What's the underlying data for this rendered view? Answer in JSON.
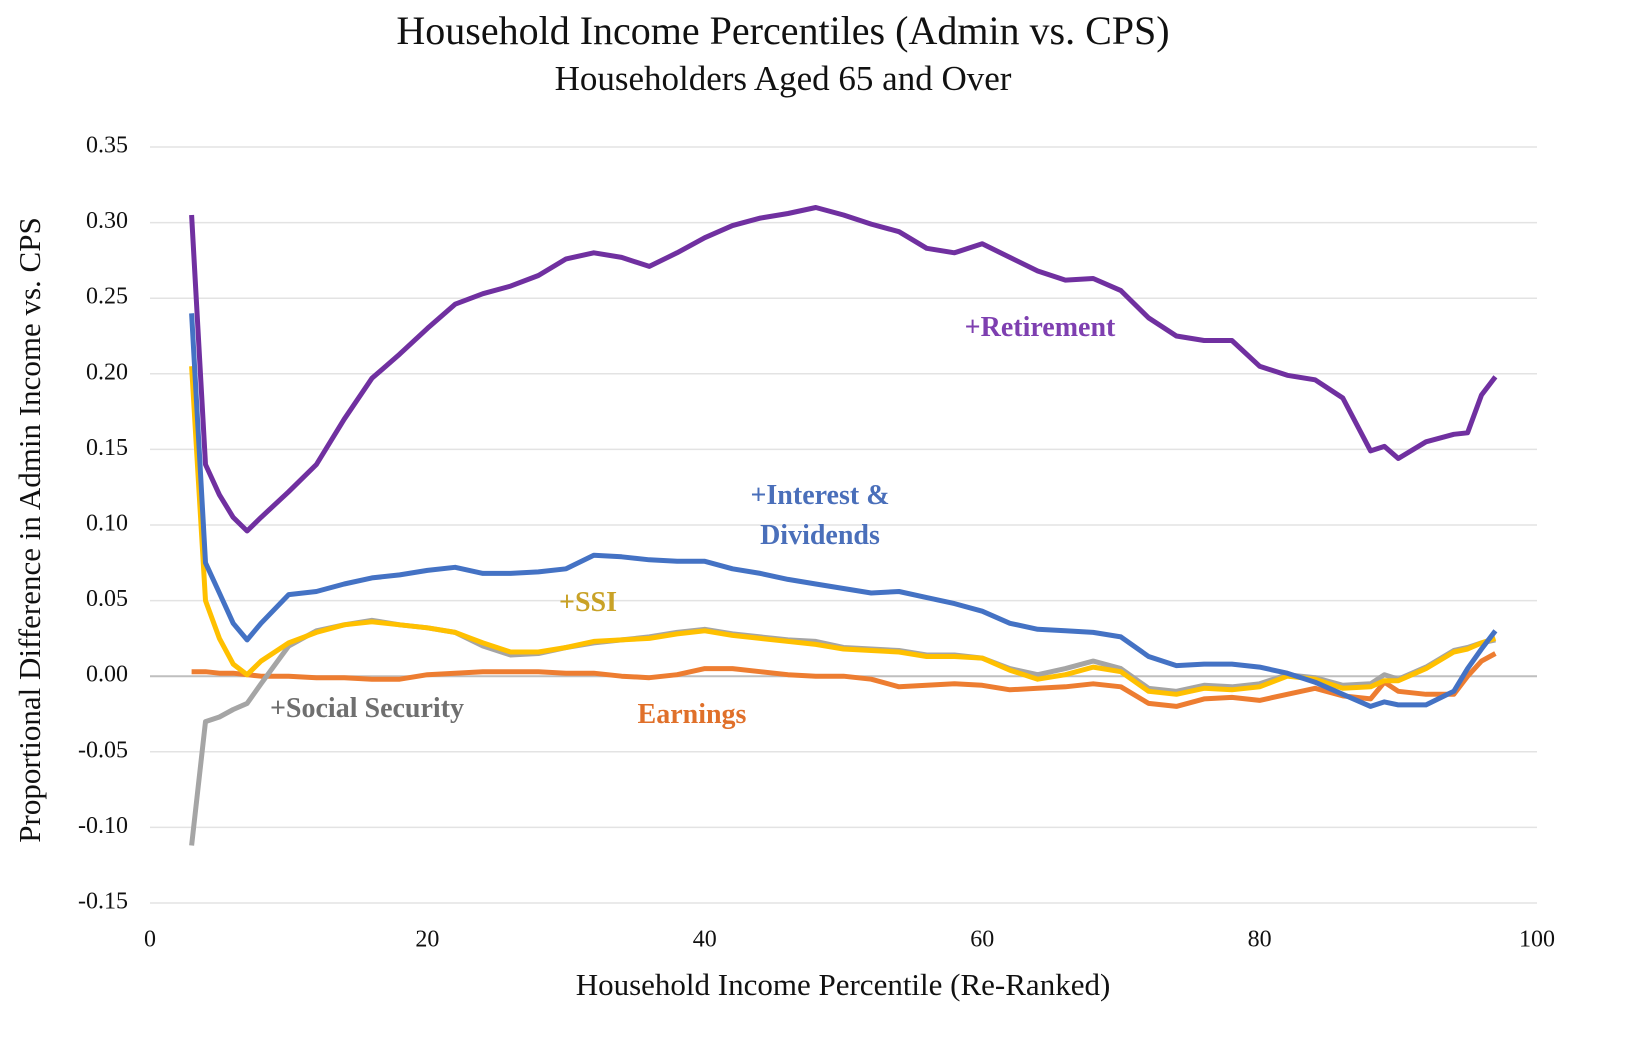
{
  "chart_data": {
    "type": "line",
    "title": "Household Income Percentiles (Admin vs. CPS)",
    "subtitle": "Householders Aged 65 and Over",
    "x_label": "Household Income Percentile (Re-Ranked)",
    "y_label": "Proportional Difference in Admin Income vs. CPS",
    "x": [
      3,
      4,
      5,
      6,
      7,
      8,
      10,
      12,
      14,
      16,
      18,
      20,
      22,
      24,
      26,
      28,
      30,
      32,
      34,
      36,
      38,
      40,
      42,
      44,
      46,
      48,
      50,
      52,
      54,
      56,
      58,
      60,
      62,
      64,
      66,
      68,
      70,
      72,
      74,
      76,
      78,
      80,
      82,
      84,
      86,
      88,
      89,
      90,
      92,
      94,
      95,
      96,
      97
    ],
    "xlim": [
      0,
      100
    ],
    "xticks": [
      0,
      20,
      40,
      60,
      80,
      100
    ],
    "ylim": [
      -0.15,
      0.35
    ],
    "yticks": [
      {
        "value": -0.15,
        "label": "-0.15"
      },
      {
        "value": -0.1,
        "label": "-0.10"
      },
      -0.05,
      {
        "value": 0,
        "label": "0.00"
      },
      0.05,
      {
        "value": 0.1,
        "label": "0.10"
      },
      0.15,
      {
        "value": 0.2,
        "label": "0.20"
      },
      0.25,
      {
        "value": 0.3,
        "label": "0.30"
      },
      0.35
    ],
    "grid": true,
    "series": [
      {
        "name": "Earnings",
        "color": "#ed7d31",
        "label_color": "#e0702a",
        "values": [
          0.003,
          0.003,
          0.002,
          0.002,
          0.001,
          0.0,
          0.0,
          -0.001,
          -0.001,
          -0.002,
          -0.002,
          0.001,
          0.002,
          0.003,
          0.003,
          0.003,
          0.002,
          0.002,
          0.0,
          -0.001,
          0.001,
          0.005,
          0.005,
          0.003,
          0.001,
          0.0,
          0.0,
          -0.002,
          -0.007,
          -0.006,
          -0.005,
          -0.006,
          -0.009,
          -0.008,
          -0.007,
          -0.005,
          -0.007,
          -0.018,
          -0.02,
          -0.015,
          -0.014,
          -0.016,
          -0.012,
          -0.008,
          -0.013,
          -0.015,
          -0.004,
          -0.01,
          -0.012,
          -0.012,
          0.0,
          0.01,
          0.015
        ]
      },
      {
        "name": "+Social Security",
        "color": "#a5a5a5",
        "label_color": "#6f6f6f",
        "values": [
          -0.112,
          -0.03,
          -0.027,
          -0.022,
          -0.018,
          -0.005,
          0.02,
          0.03,
          0.034,
          0.037,
          0.034,
          0.032,
          0.029,
          0.02,
          0.014,
          0.015,
          0.019,
          0.022,
          0.024,
          0.026,
          0.029,
          0.031,
          0.028,
          0.026,
          0.024,
          0.023,
          0.019,
          0.018,
          0.017,
          0.014,
          0.014,
          0.012,
          0.005,
          0.001,
          0.005,
          0.01,
          0.005,
          -0.008,
          -0.01,
          -0.006,
          -0.007,
          -0.005,
          0.001,
          -0.001,
          -0.006,
          -0.005,
          0.001,
          -0.002,
          0.006,
          0.017,
          0.019,
          0.022,
          0.024
        ]
      },
      {
        "name": "+SSI",
        "color": "#ffc000",
        "label_color": "#c9a227",
        "values": [
          0.205,
          0.05,
          0.025,
          0.008,
          0.001,
          0.01,
          0.022,
          0.029,
          0.034,
          0.036,
          0.034,
          0.032,
          0.029,
          0.022,
          0.016,
          0.016,
          0.019,
          0.023,
          0.024,
          0.025,
          0.028,
          0.03,
          0.027,
          0.025,
          0.023,
          0.021,
          0.018,
          0.017,
          0.016,
          0.013,
          0.013,
          0.012,
          0.004,
          -0.002,
          0.001,
          0.006,
          0.003,
          -0.01,
          -0.012,
          -0.008,
          -0.009,
          -0.007,
          0.0,
          -0.002,
          -0.008,
          -0.007,
          -0.003,
          -0.003,
          0.005,
          0.016,
          0.018,
          0.022,
          0.025
        ]
      },
      {
        "name": "+Interest & Dividends",
        "color": "#4472c4",
        "label_color": "#4a6fba",
        "values": [
          0.24,
          0.075,
          0.055,
          0.035,
          0.024,
          0.035,
          0.054,
          0.056,
          0.061,
          0.065,
          0.067,
          0.07,
          0.072,
          0.068,
          0.068,
          0.069,
          0.071,
          0.08,
          0.079,
          0.077,
          0.076,
          0.076,
          0.071,
          0.068,
          0.064,
          0.061,
          0.058,
          0.055,
          0.056,
          0.052,
          0.048,
          0.043,
          0.035,
          0.031,
          0.03,
          0.029,
          0.026,
          0.013,
          0.007,
          0.008,
          0.008,
          0.006,
          0.002,
          -0.004,
          -0.012,
          -0.02,
          -0.017,
          -0.019,
          -0.019,
          -0.01,
          0.005,
          0.018,
          0.03
        ]
      },
      {
        "name": "+Retirement",
        "color": "#7030a0",
        "label_color": "#7e3fb0",
        "values": [
          0.305,
          0.14,
          0.12,
          0.105,
          0.096,
          0.105,
          0.122,
          0.14,
          0.17,
          0.197,
          0.213,
          0.23,
          0.246,
          0.253,
          0.258,
          0.265,
          0.276,
          0.28,
          0.277,
          0.271,
          0.28,
          0.29,
          0.298,
          0.303,
          0.306,
          0.31,
          0.305,
          0.299,
          0.294,
          0.283,
          0.28,
          0.286,
          0.277,
          0.268,
          0.262,
          0.263,
          0.255,
          0.237,
          0.225,
          0.222,
          0.222,
          0.205,
          0.199,
          0.196,
          0.184,
          0.149,
          0.152,
          0.144,
          0.155,
          0.16,
          0.161,
          0.186,
          0.198
        ]
      }
    ]
  }
}
